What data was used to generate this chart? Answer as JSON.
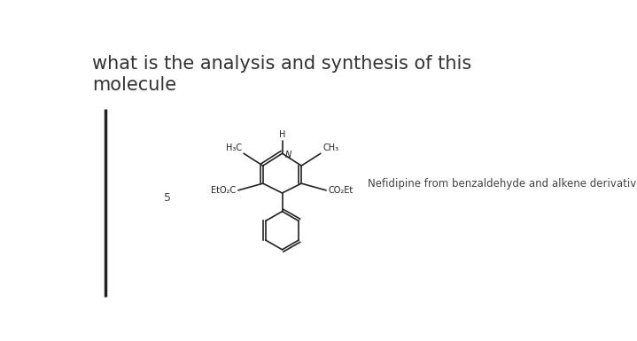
{
  "title_line1": "what is the analysis and synthesis of this",
  "title_line2": "molecule",
  "title_fontsize": 15,
  "title_color": "#333333",
  "number_label": "5",
  "side_text": "Nefidipine from benzaldehyde and alkene derivative",
  "bg_color": "#ffffff",
  "bar_color": "#222222",
  "ring_color": "#222222",
  "label_color": "#222222"
}
